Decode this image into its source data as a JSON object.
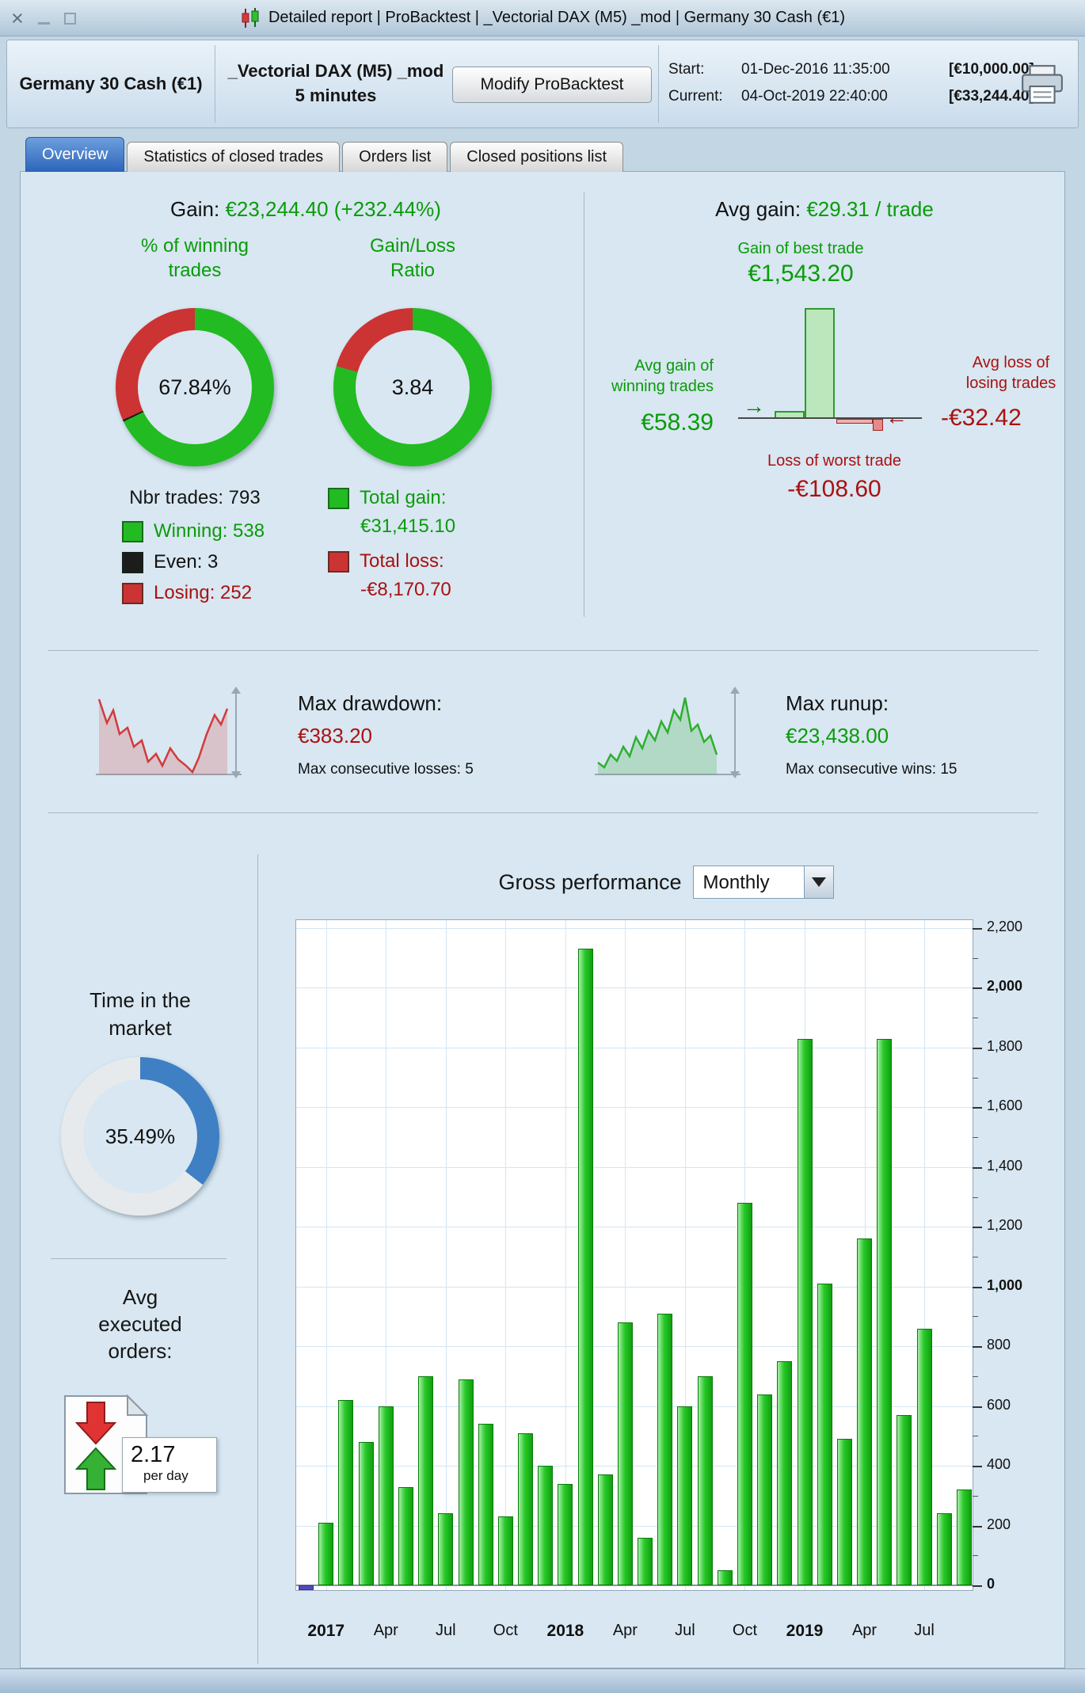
{
  "window": {
    "title": "Detailed report  |  ProBacktest  |  _Vectorial DAX (M5) _mod  |  Germany 30 Cash (€1)"
  },
  "icons": {
    "candlestick-icon": "price-bars chart glyph",
    "close-icon": "×",
    "minimize-icon": "underscore bar",
    "maximize-icon": "hollow square",
    "printer-icon": "printer",
    "chevron-down-icon": "down triangle",
    "arrow-right-icon": "→",
    "arrow-left-icon": "←",
    "orders-icon": "sheet with red down-arrow and green up-arrow",
    "drawdown-sparkline-icon": "red jagged line chart",
    "runup-sparkline-icon": "green jagged line chart"
  },
  "header": {
    "instrument": "Germany 30 Cash (€1)",
    "system": "_Vectorial DAX (M5) _mod",
    "timeframe": "5 minutes",
    "modify_button": "Modify ProBacktest",
    "start_label": "Start:",
    "start_datetime": "01-Dec-2016 11:35:00",
    "start_equity": "[€10,000.00]",
    "current_label": "Current:",
    "current_datetime": "04-Oct-2019 22:40:00",
    "current_equity": "[€33,244.40]"
  },
  "tabs": {
    "active": 0,
    "items": [
      "Overview",
      "Statistics of closed trades",
      "Orders list",
      "Closed positions list"
    ]
  },
  "overview": {
    "gain_label": "Gain:",
    "gain_value": "€23,244.40 (+232.44%)",
    "winning": {
      "title_line1": "% of winning",
      "title_line2": "trades",
      "pct": "67.84%",
      "pct_value": 67.84,
      "even_pct": 0.38,
      "nbr_trades": "Nbr trades: 793",
      "legend": [
        {
          "label": "Winning: 538",
          "color": "#22bb22"
        },
        {
          "label": "Even: 3",
          "color": "#1c1c1c"
        },
        {
          "label": "Losing: 252",
          "color": "#cc3333"
        }
      ]
    },
    "ratio": {
      "title_line1": "Gain/Loss",
      "title_line2": "Ratio",
      "value": "3.84",
      "green_pct": 79.3,
      "total_gain_label": "Total gain:",
      "total_gain_value": "€31,415.10",
      "total_loss_label": "Total loss:",
      "total_loss_value": "-€8,170.70"
    },
    "avg": {
      "label": "Avg gain:",
      "value": "€29.31 / trade",
      "best_label": "Gain of best trade",
      "best_value": "€1,543.20",
      "avg_win_label1": "Avg gain of",
      "avg_win_label2": "winning trades",
      "avg_win_value": "€58.39",
      "avg_loss_label1": "Avg loss of",
      "avg_loss_label2": "losing trades",
      "avg_loss_value": "-€32.42",
      "worst_label": "Loss of worst trade",
      "worst_value": "-€108.60"
    },
    "drawdown": {
      "label": "Max drawdown:",
      "value": "€383.20",
      "sub": "Max consecutive losses: 5"
    },
    "runup": {
      "label": "Max runup:",
      "value": "€23,438.00",
      "sub": "Max consecutive wins: 15"
    },
    "time_in_market": {
      "title_line1": "Time in the",
      "title_line2": "market",
      "pct": "35.49%",
      "pct_value": 35.49
    },
    "avg_orders": {
      "title_line1": "Avg",
      "title_line2": "executed",
      "title_line3": "orders:",
      "value": "2.17",
      "unit": "per day"
    },
    "gross": {
      "title": "Gross performance",
      "period": "Monthly"
    }
  },
  "colors": {
    "green_text": "#0a9b0a",
    "red_text": "#aa1111",
    "donut_green": "#22bb22",
    "donut_red": "#cc3333",
    "donut_dark": "#1c1c1c",
    "donut_rest": "#e7eaec",
    "blue": "#3f7fc4",
    "bar_green": "#1fc51f",
    "bar_negative": "#5847c0"
  },
  "chart_data": {
    "type": "bar",
    "title": "Gross performance",
    "interval": "Monthly",
    "ylabel": "",
    "ylim": [
      -60,
      2250
    ],
    "grid": true,
    "legend_position": "none",
    "months": [
      "Dec-2016",
      "Jan-2017",
      "Feb-2017",
      "Mar-2017",
      "Apr-2017",
      "May-2017",
      "Jun-2017",
      "Jul-2017",
      "Aug-2017",
      "Sep-2017",
      "Oct-2017",
      "Nov-2017",
      "Dec-2017",
      "Jan-2018",
      "Feb-2018",
      "Mar-2018",
      "Apr-2018",
      "May-2018",
      "Jun-2018",
      "Jul-2018",
      "Aug-2018",
      "Sep-2018",
      "Oct-2018",
      "Nov-2018",
      "Dec-2018",
      "Jan-2019",
      "Feb-2019",
      "Mar-2019",
      "Apr-2019",
      "May-2019",
      "Jun-2019",
      "Jul-2019",
      "Aug-2019",
      "Sep-2019"
    ],
    "values": [
      -15,
      210,
      620,
      480,
      600,
      330,
      700,
      240,
      690,
      540,
      230,
      510,
      400,
      340,
      2130,
      370,
      880,
      160,
      910,
      600,
      700,
      50,
      1280,
      640,
      750,
      1830,
      1010,
      490,
      1160,
      1830,
      570,
      860,
      240,
      320
    ],
    "yticks": [
      0,
      200,
      400,
      600,
      800,
      1000,
      1200,
      1400,
      1600,
      1800,
      2000,
      2200
    ],
    "xticks": [
      {
        "i": 1,
        "label": "2017",
        "bold": true
      },
      {
        "i": 4,
        "label": "Apr",
        "bold": false
      },
      {
        "i": 7,
        "label": "Jul",
        "bold": false
      },
      {
        "i": 10,
        "label": "Oct",
        "bold": false
      },
      {
        "i": 13,
        "label": "2018",
        "bold": true
      },
      {
        "i": 16,
        "label": "Apr",
        "bold": false
      },
      {
        "i": 19,
        "label": "Jul",
        "bold": false
      },
      {
        "i": 22,
        "label": "Oct",
        "bold": false
      },
      {
        "i": 25,
        "label": "2019",
        "bold": true
      },
      {
        "i": 28,
        "label": "Apr",
        "bold": false
      },
      {
        "i": 31,
        "label": "Jul",
        "bold": false
      }
    ]
  }
}
